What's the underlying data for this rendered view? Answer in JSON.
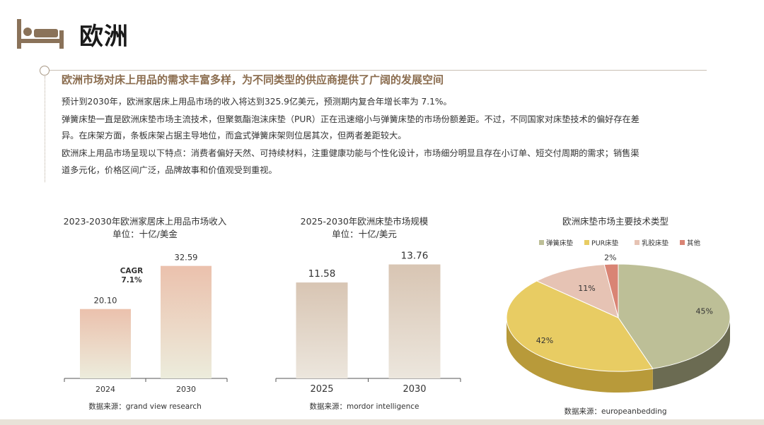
{
  "header": {
    "title": "欧洲",
    "icon": "bed-icon"
  },
  "headline": "欧洲市场对床上用品的需求丰富多样，为不同类型的供应商提供了广阔的发展空间",
  "paragraphs": [
    "预计到2030年，欧洲家居床上用品市场的收入将达到325.9亿美元，预测期内复合年增长率为 7.1%。",
    "弹簧床垫一直是欧洲床垫市场主流技术，但聚氨酯泡沫床垫（PUR）正在迅速缩小与弹簧床垫的市场份额差距。不过，不同国家对床垫技术的偏好存在差",
    "异。在床架方面，条板床架占据主导地位，而盒式弹簧床架则位居其次，但两者差距较大。",
    "欧洲床上用品市场呈现以下特点：消费者偏好天然、可持续材料，注重健康功能与个性化设计，市场细分明显且存在小订单、短交付周期的需求；销售渠",
    "道多元化，价格区间广泛，品牌故事和价值观受到重视。"
  ],
  "chart_data": [
    {
      "type": "bar",
      "title": "2023-2030年欧洲家居床上用品市场收入",
      "subtitle": "单位：十亿/美金",
      "categories": [
        "2024",
        "2030"
      ],
      "values": [
        20.1,
        32.59
      ],
      "value_labels": [
        "20.10",
        "32.59"
      ],
      "annotation": [
        "CAGR",
        "7.1%"
      ],
      "ylim": [
        0,
        36
      ],
      "source": "数据来源：grand view research"
    },
    {
      "type": "bar",
      "title": "2025-2030年欧洲床垫市场规模",
      "subtitle": "单位：十亿/美元",
      "categories": [
        "2025",
        "2030"
      ],
      "values": [
        11.58,
        13.76
      ],
      "value_labels": [
        "11.58",
        "13.76"
      ],
      "ylim": [
        0,
        15
      ],
      "source": "数据来源：mordor intelligence"
    },
    {
      "type": "pie",
      "title": "欧洲床垫市场主要技术类型",
      "categories": [
        "弹簧床垫",
        "PUR床垫",
        "乳胶床垫",
        "其他"
      ],
      "values": [
        45,
        42,
        11,
        2
      ],
      "value_labels": [
        "45%",
        "42%",
        "11%",
        "2%"
      ],
      "colors": [
        "#bdbf97",
        "#e8cc63",
        "#e6c3b4",
        "#d98474"
      ],
      "legend_position": "top",
      "source": "数据来源：europeanbedding"
    }
  ],
  "colors": {
    "accent": "#8b6d4f",
    "icon": "#8a7259"
  }
}
